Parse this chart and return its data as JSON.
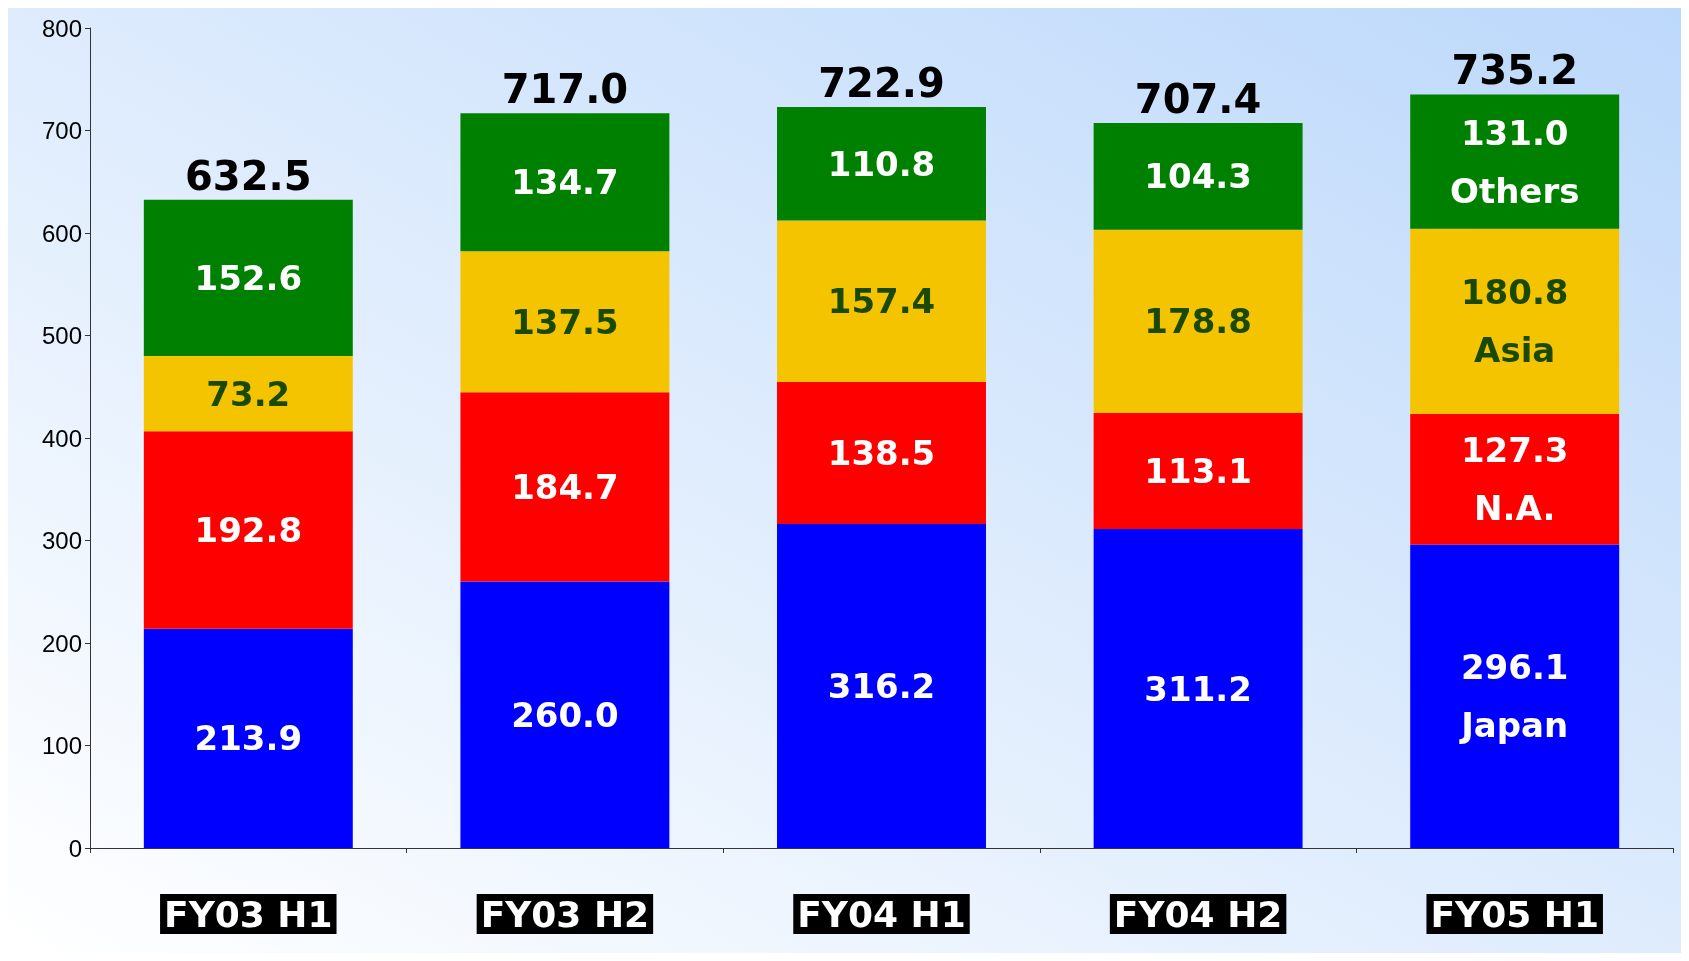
{
  "chart_data": {
    "type": "bar",
    "stacked": true,
    "categories": [
      "FY03 H1",
      "FY03 H2",
      "FY04 H1",
      "FY04 H2",
      "FY05 H1"
    ],
    "series": [
      {
        "name": "Japan",
        "color": "#0000ff",
        "values": [
          213.9,
          260.0,
          316.2,
          311.2,
          296.1
        ],
        "value_labels": [
          "213.9",
          "260.0",
          "316.2",
          "311.2",
          "296.1"
        ]
      },
      {
        "name": "N.A.",
        "color": "#ff0000",
        "values": [
          192.8,
          184.7,
          138.5,
          113.1,
          127.3
        ],
        "value_labels": [
          "192.8",
          "184.7",
          "138.5",
          "113.1",
          "127.3"
        ]
      },
      {
        "name": "Asia",
        "color": "#f5c400",
        "values": [
          73.2,
          137.5,
          157.4,
          178.8,
          180.8
        ],
        "value_labels": [
          "73.2",
          "137.5",
          "157.4",
          "178.8",
          "180.8"
        ]
      },
      {
        "name": "Others",
        "color": "#008000",
        "values": [
          152.6,
          134.7,
          110.8,
          104.3,
          131.0
        ],
        "value_labels": [
          "152.6",
          "134.7",
          "110.8",
          "104.3",
          "131.0"
        ]
      }
    ],
    "totals": [
      "632.5",
      "717.0",
      "722.9",
      "707.4",
      "735.2"
    ],
    "legend": false,
    "grid": false,
    "ylim": [
      0,
      800
    ],
    "yticks": [
      0,
      100,
      200,
      300,
      400,
      500,
      600,
      700,
      800
    ]
  }
}
